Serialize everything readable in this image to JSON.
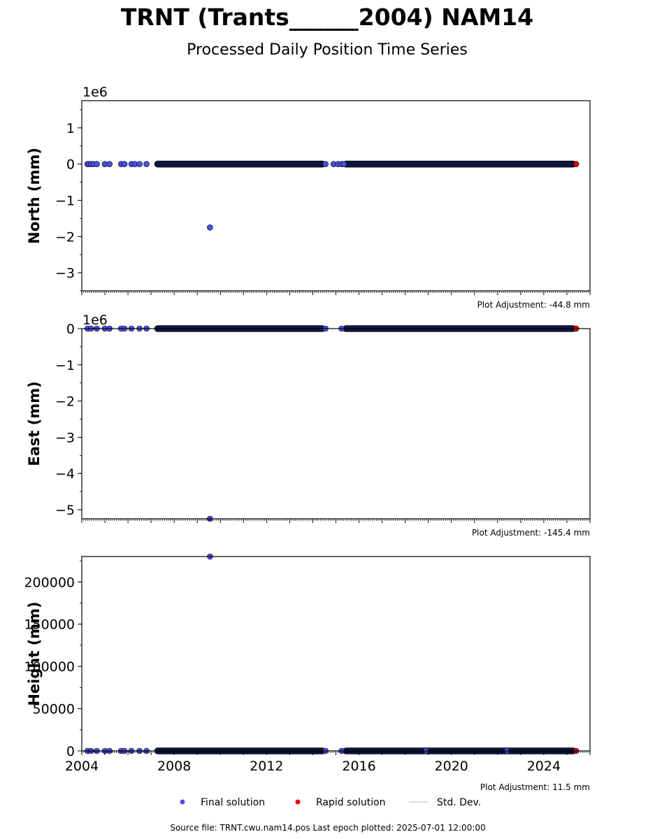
{
  "title": "TRNT (Trants______2004) NAM14",
  "subtitle": "Processed Daily Position Time Series",
  "colors": {
    "final": "#4a4ee8",
    "rapid": "#e00000",
    "stddev": "#d0d0d0",
    "edge": "#000000",
    "band": "#0c1640"
  },
  "legend": {
    "final": "Final solution",
    "rapid": "Rapid solution",
    "stddev": "Std. Dev."
  },
  "source": "Source file: TRNT.cwu.nam14.pos  Last epoch plotted: 2025-07-01 12:00:00",
  "chart_data": [
    {
      "type": "scatter",
      "ylabel": "North (mm)",
      "offset_label": "1e6",
      "ylim": [
        -3.5,
        1.75
      ],
      "yticks": [
        1,
        0,
        -1,
        -2,
        -3
      ],
      "ytick_labels": [
        "1",
        "0",
        "−1",
        "−2",
        "−3"
      ],
      "adjustment": "Plot Adjustment: -44.8 mm",
      "xlim": [
        2004.0,
        2026.0
      ],
      "show_xlabels": false,
      "dense_segments": [
        [
          2007.15,
          2014.55
        ],
        [
          2015.3,
          2025.4
        ]
      ],
      "scatter_points": [
        [
          2004.25,
          0
        ],
        [
          2004.3,
          0
        ],
        [
          2004.4,
          0
        ],
        [
          2004.5,
          0
        ],
        [
          2004.65,
          0
        ],
        [
          2005.0,
          0
        ],
        [
          2005.2,
          0
        ],
        [
          2005.7,
          0
        ],
        [
          2005.85,
          0
        ],
        [
          2006.15,
          0
        ],
        [
          2006.3,
          0
        ],
        [
          2006.5,
          0
        ],
        [
          2006.8,
          0
        ],
        [
          2014.55,
          0
        ],
        [
          2014.9,
          0
        ],
        [
          2015.1,
          0
        ],
        [
          2015.25,
          0
        ],
        [
          2015.35,
          0
        ],
        [
          2009.55,
          -1.75
        ]
      ],
      "rapid_points": [
        [
          2025.4,
          0
        ]
      ]
    },
    {
      "type": "scatter",
      "ylabel": "East (mm)",
      "offset_label": "1e6",
      "ylim": [
        -5.25,
        0.0
      ],
      "yticks": [
        0,
        -1,
        -2,
        -3,
        -4,
        -5
      ],
      "ytick_labels": [
        "0",
        "−1",
        "−2",
        "−3",
        "−4",
        "−5"
      ],
      "adjustment": "Plot Adjustment: -145.4 mm",
      "xlim": [
        2004.0,
        2026.0
      ],
      "show_xlabels": false,
      "dense_segments": [
        [
          2007.15,
          2014.55
        ],
        [
          2015.3,
          2025.4
        ]
      ],
      "scatter_points": [
        [
          2004.25,
          0
        ],
        [
          2004.4,
          0
        ],
        [
          2004.65,
          0
        ],
        [
          2005.0,
          0
        ],
        [
          2005.2,
          0
        ],
        [
          2005.7,
          0
        ],
        [
          2005.85,
          0
        ],
        [
          2006.15,
          0
        ],
        [
          2006.5,
          0
        ],
        [
          2006.8,
          0
        ],
        [
          2014.55,
          0
        ],
        [
          2015.25,
          0
        ],
        [
          2009.55,
          -5.25
        ]
      ],
      "rapid_points": [
        [
          2025.4,
          0
        ]
      ]
    },
    {
      "type": "scatter",
      "ylabel": "Height (mm)",
      "offset_label": "",
      "ylim": [
        0,
        230000
      ],
      "yticks": [
        0,
        50000,
        100000,
        150000,
        200000
      ],
      "ytick_labels": [
        "0",
        "50000",
        "100000",
        "150000",
        "200000"
      ],
      "adjustment": "Plot Adjustment: 11.5 mm",
      "xlim": [
        2004.0,
        2026.0
      ],
      "show_xlabels": true,
      "xticks": [
        2004,
        2008,
        2012,
        2016,
        2020,
        2024
      ],
      "xtick_labels": [
        "2004",
        "2008",
        "2012",
        "2016",
        "2020",
        "2024"
      ],
      "dense_segments": [
        [
          2007.15,
          2014.55
        ],
        [
          2015.3,
          2025.4
        ]
      ],
      "scatter_points": [
        [
          2004.25,
          0
        ],
        [
          2004.4,
          0
        ],
        [
          2004.65,
          0
        ],
        [
          2005.0,
          0
        ],
        [
          2005.2,
          0
        ],
        [
          2005.7,
          0
        ],
        [
          2005.85,
          0
        ],
        [
          2006.15,
          0
        ],
        [
          2006.5,
          0
        ],
        [
          2006.8,
          0
        ],
        [
          2014.55,
          0
        ],
        [
          2015.25,
          0
        ],
        [
          2018.9,
          0
        ],
        [
          2022.4,
          0
        ],
        [
          2009.55,
          230000
        ]
      ],
      "rapid_points": [
        [
          2025.4,
          0
        ]
      ]
    }
  ]
}
